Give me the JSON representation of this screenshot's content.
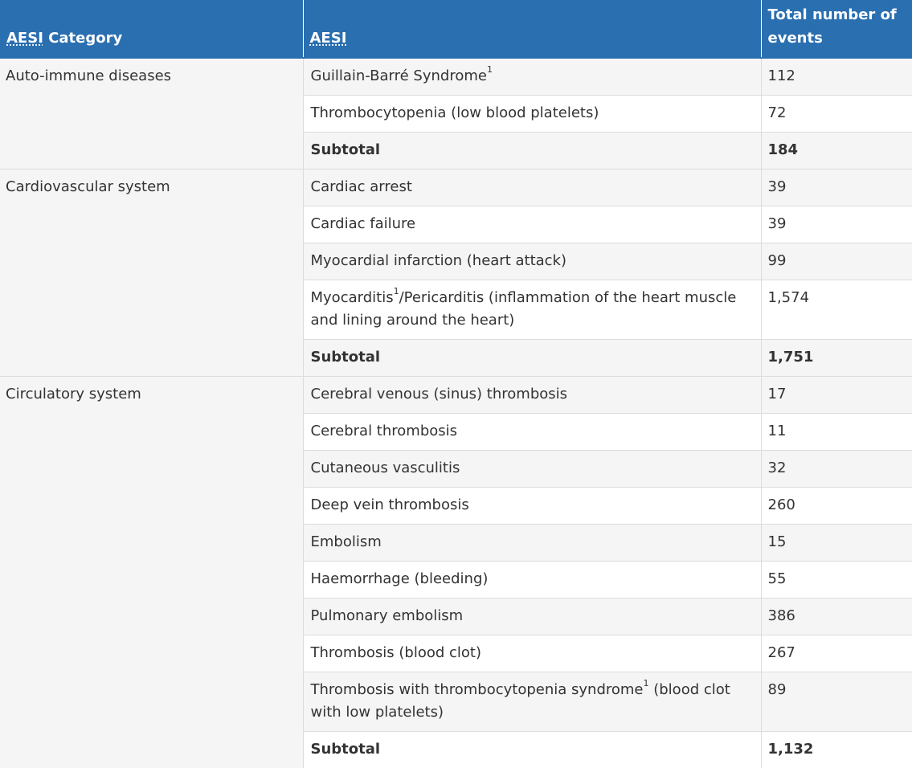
{
  "headers": {
    "category_abbr": "AESI",
    "category_rest": " Category",
    "aesi": "AESI",
    "total": "Total number of events"
  },
  "groups": [
    {
      "category": "Auto-immune diseases",
      "rows": [
        {
          "pre": "Guillain-Barré Syndrome",
          "sup": "1",
          "post": "",
          "value": "112"
        },
        {
          "pre": "Thrombocytopenia (low blood platelets)",
          "value": "72"
        }
      ],
      "subtotal_label": "Subtotal",
      "subtotal_value": "184"
    },
    {
      "category": "Cardiovascular system",
      "rows": [
        {
          "pre": "Cardiac arrest",
          "value": "39"
        },
        {
          "pre": "Cardiac failure",
          "value": "39"
        },
        {
          "pre": "Myocardial infarction (heart attack)",
          "value": "99"
        },
        {
          "pre": "Myocarditis",
          "sup": "1",
          "post": "/Pericarditis (inflammation of the heart muscle and lining around the heart)",
          "value": "1,574"
        }
      ],
      "subtotal_label": "Subtotal",
      "subtotal_value": "1,751"
    },
    {
      "category": "Circulatory system",
      "rows": [
        {
          "pre": "Cerebral venous (sinus) thrombosis",
          "value": "17"
        },
        {
          "pre": "Cerebral thrombosis",
          "value": "11"
        },
        {
          "pre": "Cutaneous vasculitis",
          "value": "32"
        },
        {
          "pre": "Deep vein thrombosis",
          "value": "260"
        },
        {
          "pre": "Embolism",
          "value": "15"
        },
        {
          "pre": "Haemorrhage (bleeding)",
          "value": "55"
        },
        {
          "pre": "Pulmonary embolism",
          "value": "386"
        },
        {
          "pre": "Thrombosis (blood clot)",
          "value": "267"
        },
        {
          "pre": "Thrombosis with thrombocytopenia syndrome",
          "sup": "1",
          "post": " (blood clot with low platelets)",
          "value": "89"
        }
      ],
      "subtotal_label": "Subtotal",
      "subtotal_value": "1,132"
    }
  ],
  "colors": {
    "header_bg": "#2a6fb0",
    "header_text": "#ffffff",
    "stripe": "#f5f5f5",
    "border": "#dcdcdc",
    "text": "#333333"
  }
}
